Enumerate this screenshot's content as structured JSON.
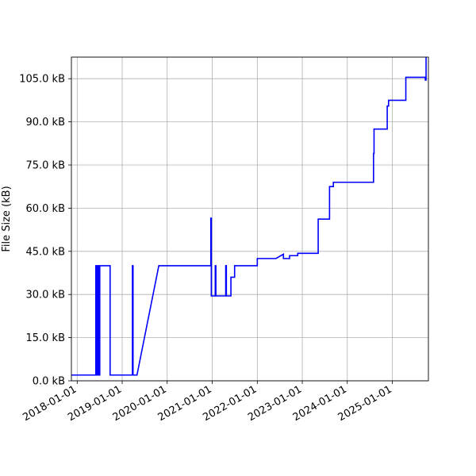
{
  "chart_data": {
    "type": "line",
    "title": "",
    "xlabel": "",
    "ylabel": "File Size (kB)",
    "xlim": [
      "2017-11-15",
      "2025-10-20"
    ],
    "ylim": [
      0,
      112.5
    ],
    "grid": true,
    "x_ticks": [
      "2018-01-01",
      "2019-01-01",
      "2020-01-01",
      "2021-01-01",
      "2022-01-01",
      "2023-01-01",
      "2024-01-01",
      "2025-01-01"
    ],
    "y_ticks": [
      0,
      15,
      30,
      45,
      60,
      75,
      90,
      105
    ],
    "y_tick_labels": [
      "0.0 kB",
      "15.0 kB",
      "30.0 kB",
      "45.0 kB",
      "60.0 kB",
      "75.0 kB",
      "90.0 kB",
      "105.0 kB"
    ],
    "colors": {
      "line": "#0000ff",
      "grid": "#b0b0b0",
      "axes": "#000000"
    },
    "series": [
      {
        "x": [
          "2017-11-15",
          "2018-06-01",
          "2018-06-01",
          "2018-06-05",
          "2018-06-05",
          "2018-06-12",
          "2018-06-12",
          "2018-06-17",
          "2018-06-17",
          "2018-06-22",
          "2018-06-22",
          "2018-06-27",
          "2018-06-27",
          "2018-07-03",
          "2018-07-03",
          "2018-09-25",
          "2018-09-25",
          "2018-10-01",
          "2018-10-01",
          "2019-03-25",
          "2019-03-25",
          "2019-03-30",
          "2019-03-30",
          "2019-05-01",
          "2019-10-25",
          "2020-12-20",
          "2020-12-20",
          "2020-12-24",
          "2020-12-24",
          "2021-01-25",
          "2021-01-25",
          "2021-01-30",
          "2021-01-30",
          "2021-04-20",
          "2021-04-20",
          "2021-04-25",
          "2021-04-25",
          "2021-06-01",
          "2021-06-01",
          "2021-07-01",
          "2021-07-01",
          "2022-01-01",
          "2022-01-01",
          "2022-06-01",
          "2022-08-01",
          "2022-08-01",
          "2022-09-20",
          "2022-09-20",
          "2022-11-25",
          "2022-11-25",
          "2023-05-10",
          "2023-05-10",
          "2023-08-10",
          "2023-08-10",
          "2023-09-10",
          "2023-09-10",
          "2024-08-01",
          "2024-08-01",
          "2024-08-05",
          "2024-08-05",
          "2024-11-20",
          "2024-11-20",
          "2024-12-01",
          "2024-12-01",
          "2025-04-20",
          "2025-04-20",
          "2025-09-25",
          "2025-09-25",
          "2025-10-01",
          "2025-10-01"
        ],
        "y": [
          2,
          2,
          40,
          40,
          2,
          2,
          40,
          40,
          2,
          2,
          40,
          40,
          2,
          2,
          40,
          40,
          2,
          2,
          2,
          2,
          40,
          40,
          2,
          2,
          40,
          40,
          56.5,
          56.5,
          29.5,
          29.5,
          40,
          40,
          29.5,
          29.5,
          40,
          40,
          29.5,
          29.5,
          36,
          36,
          40,
          40,
          42.5,
          42.5,
          44,
          42.5,
          42.5,
          43.5,
          43.5,
          44.3,
          44.3,
          56.2,
          56.2,
          67.5,
          67.5,
          69,
          69,
          79,
          79,
          87.5,
          87.5,
          95.5,
          95.5,
          97.5,
          97.5,
          105.5,
          105.5,
          104.5,
          104.5,
          112.5
        ]
      }
    ]
  }
}
